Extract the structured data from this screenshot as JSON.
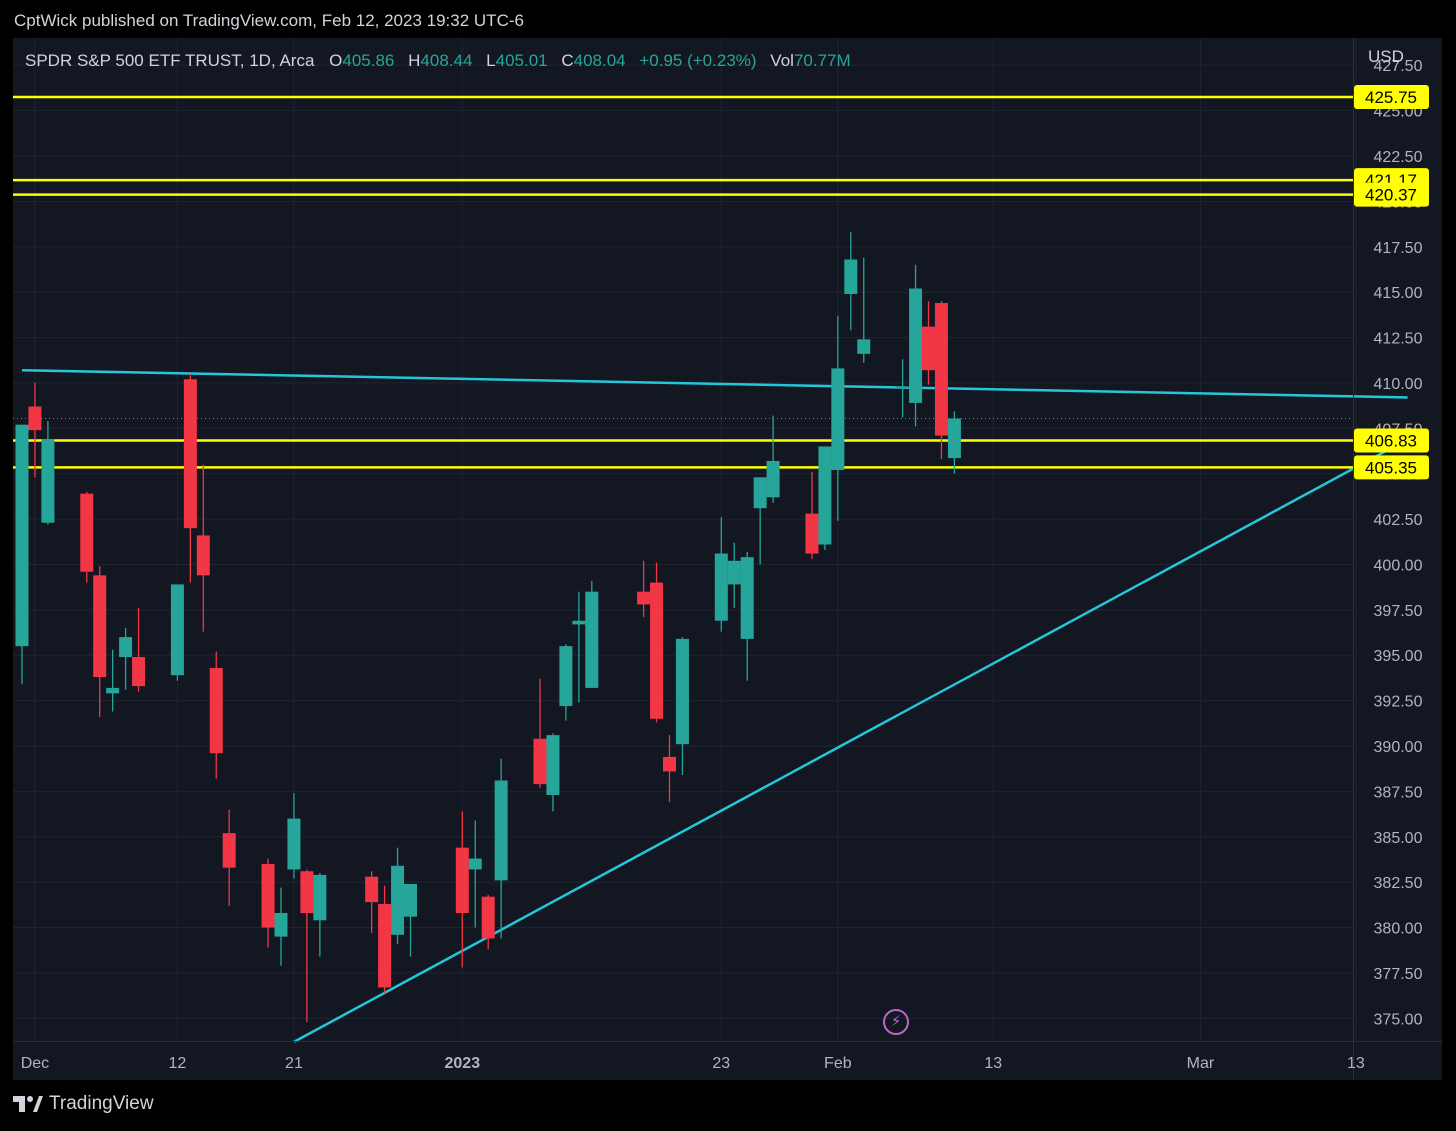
{
  "publisher": {
    "text": "CptWick published on TradingView.com, Feb 12, 2023 19:32 UTC-6"
  },
  "legend": {
    "symbol": "SPDR S&P 500 ETF TRUST, 1D, Arca",
    "o_label": "O",
    "o_value": "405.86",
    "h_label": "H",
    "h_value": "408.44",
    "l_label": "L",
    "l_value": "405.01",
    "c_label": "C",
    "c_value": "408.04",
    "change": "+0.95 (+0.23%)",
    "vol_label": "Vol",
    "vol_value": "70.77M"
  },
  "currency": "USD",
  "footer": {
    "brand": "TradingView"
  },
  "indicator_icon": "lightning-icon",
  "colors": {
    "background": "#131722",
    "up": "#26a69a",
    "down": "#f23645",
    "level_line": "#ffff00",
    "trend_line": "#26c6da",
    "grid": "#1f2433",
    "axis_text": "#b2b5be",
    "last_price_line": "#26a69a"
  },
  "chart_data": {
    "type": "candlestick",
    "ylim": [
      373.75,
      429.0
    ],
    "y_ticks": [
      375.0,
      377.5,
      380.0,
      382.5,
      385.0,
      387.5,
      390.0,
      392.5,
      395.0,
      397.5,
      400.0,
      402.5,
      405.0,
      407.5,
      410.0,
      412.5,
      415.0,
      417.5,
      420.0,
      422.5,
      425.0,
      427.5
    ],
    "y_tick_labels": [
      "375.00",
      "377.50",
      "380.00",
      "382.50",
      "385.00",
      "387.50",
      "390.00",
      "392.50",
      "395.00",
      "397.50",
      "400.00",
      "402.50",
      "405.00",
      "407.50",
      "410.00",
      "412.50",
      "415.00",
      "417.50",
      "420.00",
      "422.50",
      "425.00",
      "427.50"
    ],
    "x_ticks": [
      {
        "date": "2022-12-01",
        "label": "Dec",
        "bold": false
      },
      {
        "date": "2022-12-12",
        "label": "12",
        "bold": false
      },
      {
        "date": "2022-12-21",
        "label": "21",
        "bold": false
      },
      {
        "date": "2023-01-03",
        "label": "2023",
        "bold": true
      },
      {
        "date": "2023-01-23",
        "label": "23",
        "bold": false
      },
      {
        "date": "2023-02-01",
        "label": "Feb",
        "bold": false
      },
      {
        "date": "2023-02-13",
        "label": "13",
        "bold": false
      },
      {
        "date": "2023-03-01",
        "label": "Mar",
        "bold": false
      },
      {
        "date": "2023-03-13",
        "label": "13",
        "bold": false
      }
    ],
    "candles": [
      {
        "date": "2022-11-30",
        "o": 395.5,
        "h": 407.7,
        "l": 393.4,
        "c": 407.7
      },
      {
        "date": "2022-12-01",
        "o": 408.7,
        "h": 410.0,
        "l": 404.8,
        "c": 407.4
      },
      {
        "date": "2022-12-02",
        "o": 402.3,
        "h": 407.9,
        "l": 402.2,
        "c": 406.9
      },
      {
        "date": "2022-12-05",
        "o": 403.9,
        "h": 404.0,
        "l": 399.0,
        "c": 399.6
      },
      {
        "date": "2022-12-06",
        "o": 399.4,
        "h": 399.9,
        "l": 391.6,
        "c": 393.8
      },
      {
        "date": "2022-12-07",
        "o": 392.9,
        "h": 395.3,
        "l": 391.9,
        "c": 393.2
      },
      {
        "date": "2022-12-08",
        "o": 394.9,
        "h": 396.5,
        "l": 393.1,
        "c": 396.0
      },
      {
        "date": "2022-12-09",
        "o": 394.9,
        "h": 397.6,
        "l": 393.0,
        "c": 393.3
      },
      {
        "date": "2022-12-12",
        "o": 393.9,
        "h": 398.5,
        "l": 393.6,
        "c": 398.9
      },
      {
        "date": "2022-12-13",
        "o": 410.2,
        "h": 410.5,
        "l": 399.0,
        "c": 402.0
      },
      {
        "date": "2022-12-14",
        "o": 401.6,
        "h": 405.5,
        "l": 396.3,
        "c": 399.4
      },
      {
        "date": "2022-12-15",
        "o": 394.3,
        "h": 395.2,
        "l": 388.2,
        "c": 389.6
      },
      {
        "date": "2022-12-16",
        "o": 385.2,
        "h": 386.5,
        "l": 381.2,
        "c": 383.3
      },
      {
        "date": "2022-12-19",
        "o": 383.5,
        "h": 383.8,
        "l": 378.9,
        "c": 380.0
      },
      {
        "date": "2022-12-20",
        "o": 379.5,
        "h": 382.2,
        "l": 377.9,
        "c": 380.8
      },
      {
        "date": "2022-12-21",
        "o": 383.2,
        "h": 387.4,
        "l": 382.7,
        "c": 386.0
      },
      {
        "date": "2022-12-22",
        "o": 383.1,
        "h": 383.2,
        "l": 374.8,
        "c": 380.8
      },
      {
        "date": "2022-12-23",
        "o": 380.4,
        "h": 383.0,
        "l": 378.4,
        "c": 382.9
      },
      {
        "date": "2022-12-27",
        "o": 382.8,
        "h": 383.1,
        "l": 379.7,
        "c": 381.4
      },
      {
        "date": "2022-12-28",
        "o": 381.3,
        "h": 382.3,
        "l": 376.4,
        "c": 376.7
      },
      {
        "date": "2022-12-29",
        "o": 379.6,
        "h": 384.4,
        "l": 379.1,
        "c": 383.4
      },
      {
        "date": "2022-12-30",
        "o": 380.6,
        "h": 382.2,
        "l": 378.4,
        "c": 382.4
      },
      {
        "date": "2023-01-03",
        "o": 384.4,
        "h": 386.4,
        "l": 377.8,
        "c": 380.8
      },
      {
        "date": "2023-01-04",
        "o": 383.2,
        "h": 385.9,
        "l": 380.0,
        "c": 383.8
      },
      {
        "date": "2023-01-05",
        "o": 381.7,
        "h": 381.8,
        "l": 378.8,
        "c": 379.4
      },
      {
        "date": "2023-01-06",
        "o": 382.6,
        "h": 389.3,
        "l": 379.4,
        "c": 388.1
      },
      {
        "date": "2023-01-09",
        "o": 390.4,
        "h": 393.7,
        "l": 387.7,
        "c": 387.9
      },
      {
        "date": "2023-01-10",
        "o": 387.3,
        "h": 390.7,
        "l": 386.4,
        "c": 390.6
      },
      {
        "date": "2023-01-11",
        "o": 392.2,
        "h": 395.6,
        "l": 391.4,
        "c": 395.5
      },
      {
        "date": "2023-01-12",
        "o": 396.7,
        "h": 398.5,
        "l": 392.4,
        "c": 396.9
      },
      {
        "date": "2023-01-13",
        "o": 393.2,
        "h": 399.1,
        "l": 393.3,
        "c": 398.5
      },
      {
        "date": "2023-01-17",
        "o": 398.5,
        "h": 400.2,
        "l": 397.1,
        "c": 397.8
      },
      {
        "date": "2023-01-18",
        "o": 399.0,
        "h": 400.1,
        "l": 391.3,
        "c": 391.5
      },
      {
        "date": "2023-01-19",
        "o": 389.4,
        "h": 390.6,
        "l": 386.9,
        "c": 388.6
      },
      {
        "date": "2023-01-20",
        "o": 390.1,
        "h": 396.0,
        "l": 388.4,
        "c": 395.9
      },
      {
        "date": "2023-01-23",
        "o": 396.9,
        "h": 402.6,
        "l": 396.3,
        "c": 400.6
      },
      {
        "date": "2023-01-24",
        "o": 398.9,
        "h": 401.2,
        "l": 397.6,
        "c": 400.2
      },
      {
        "date": "2023-01-25",
        "o": 395.9,
        "h": 400.7,
        "l": 393.6,
        "c": 400.4
      },
      {
        "date": "2023-01-26",
        "o": 403.1,
        "h": 404.6,
        "l": 400.0,
        "c": 404.8
      },
      {
        "date": "2023-01-27",
        "o": 403.7,
        "h": 408.2,
        "l": 403.4,
        "c": 405.7
      },
      {
        "date": "2023-01-30",
        "o": 402.8,
        "h": 405.1,
        "l": 400.3,
        "c": 400.6
      },
      {
        "date": "2023-01-31",
        "o": 401.1,
        "h": 406.5,
        "l": 400.8,
        "c": 406.5
      },
      {
        "date": "2023-02-01",
        "o": 405.2,
        "h": 413.7,
        "l": 402.4,
        "c": 410.8
      },
      {
        "date": "2023-02-02",
        "o": 414.9,
        "h": 418.3,
        "l": 412.9,
        "c": 416.8
      },
      {
        "date": "2023-02-03",
        "o": 411.6,
        "h": 416.9,
        "l": 411.1,
        "c": 412.4
      },
      {
        "date": "2023-02-06",
        "o": 409.8,
        "h": 411.3,
        "l": 408.1,
        "c": 409.8
      },
      {
        "date": "2023-02-07",
        "o": 408.9,
        "h": 416.5,
        "l": 407.6,
        "c": 415.2
      },
      {
        "date": "2023-02-08",
        "o": 413.1,
        "h": 414.5,
        "l": 409.9,
        "c": 410.7
      },
      {
        "date": "2023-02-09",
        "o": 414.4,
        "h": 414.5,
        "l": 405.8,
        "c": 407.1
      },
      {
        "date": "2023-02-10",
        "o": 405.86,
        "h": 408.44,
        "l": 405.01,
        "c": 408.04
      }
    ],
    "horizontal_levels": [
      {
        "value": 425.75,
        "label": "425.75"
      },
      {
        "value": 421.17,
        "label": "421.17"
      },
      {
        "value": 420.37,
        "label": "420.37"
      },
      {
        "value": 406.83,
        "label": "406.83"
      },
      {
        "value": 405.35,
        "label": "405.35"
      }
    ],
    "trend_lines": [
      {
        "name": "resistance",
        "from": {
          "date": "2022-11-30",
          "value": 410.7
        },
        "to": {
          "date": "2023-03-17",
          "value": 409.2
        }
      },
      {
        "name": "support",
        "from": {
          "date": "2022-12-21",
          "value": 373.7
        },
        "to": {
          "date": "2023-03-17",
          "value": 406.9
        }
      }
    ],
    "last_price": 408.04,
    "grid": true
  }
}
